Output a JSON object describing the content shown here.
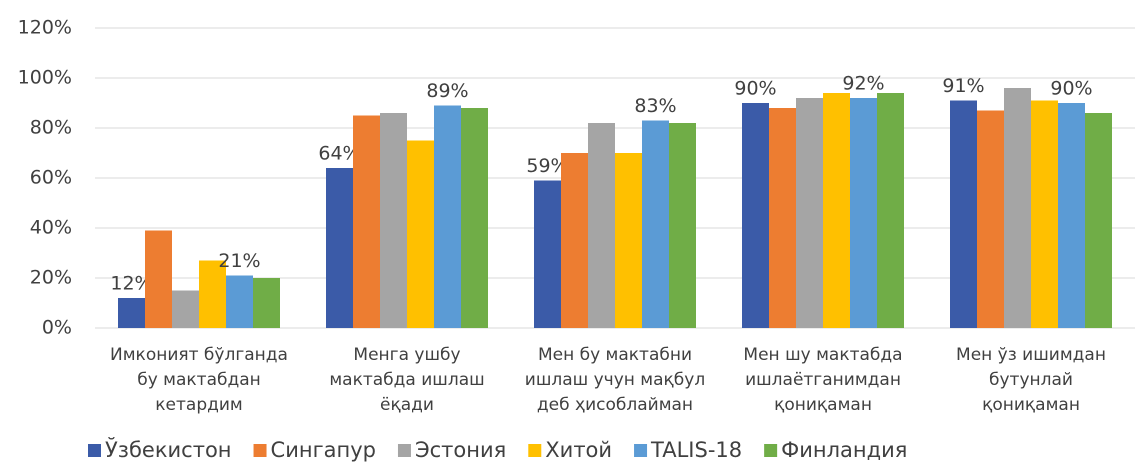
{
  "chart_data": {
    "type": "bar",
    "categories": [
      [
        "Имконият бўлганда",
        "бу мактабдан",
        "кетардим"
      ],
      [
        "Менга ушбу",
        "мактабда ишлаш",
        "ёқади"
      ],
      [
        "Мен бу мактабни",
        "ишлаш учун мақбул",
        "деб ҳисоблайман"
      ],
      [
        "Мен шу мактабда",
        "ишлаётганимдан",
        "қониқаман"
      ],
      [
        "Мен ўз ишимдан",
        "бутунлай",
        "қониқаман"
      ]
    ],
    "series": [
      {
        "name": "Ўзбекистон",
        "color": "#3b5ba8",
        "values": [
          12,
          64,
          59,
          90,
          91
        ],
        "value_labels": [
          "12%",
          "64%",
          "59%",
          "90%",
          "91%"
        ]
      },
      {
        "name": "Сингапур",
        "color": "#ed7d31",
        "values": [
          39,
          85,
          70,
          88,
          87
        ]
      },
      {
        "name": "Эстония",
        "color": "#a5a5a5",
        "values": [
          15,
          86,
          82,
          92,
          96
        ]
      },
      {
        "name": "Хитой",
        "color": "#ffc000",
        "values": [
          27,
          75,
          70,
          94,
          91
        ]
      },
      {
        "name": "TALIS-18",
        "color": "#5b9bd5",
        "values": [
          21,
          89,
          83,
          92,
          90
        ],
        "value_labels": [
          "21%",
          "89%",
          "83%",
          "92%",
          "90%"
        ]
      },
      {
        "name": "Финландия",
        "color": "#70ad47",
        "values": [
          20,
          88,
          82,
          94,
          86
        ]
      }
    ],
    "ylim": [
      0,
      120
    ],
    "yticks": [
      {
        "value": 0,
        "label": "0%"
      },
      {
        "value": 20,
        "label": "20%"
      },
      {
        "value": 40,
        "label": "40%"
      },
      {
        "value": 60,
        "label": "60%"
      },
      {
        "value": 80,
        "label": "80%"
      },
      {
        "value": 100,
        "label": "100%"
      },
      {
        "value": 120,
        "label": "120%"
      }
    ],
    "grid": true
  }
}
